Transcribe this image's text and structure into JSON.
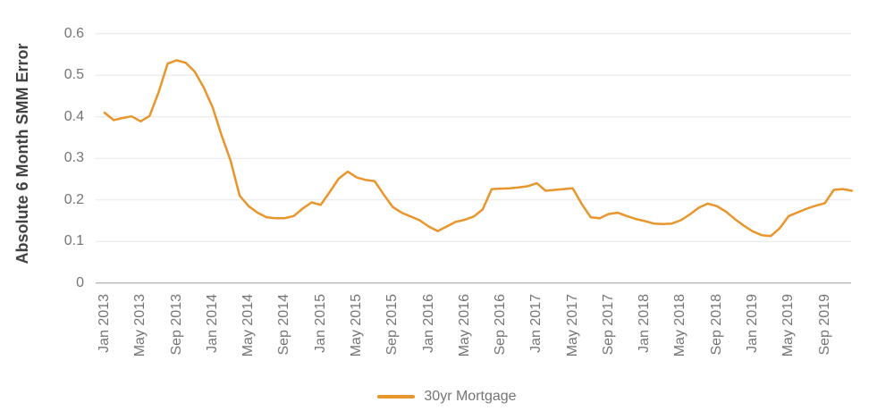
{
  "chart_data": {
    "type": "line",
    "title": "",
    "ylabel": "Absolute 6 Month SMM Error",
    "xlabel": "",
    "ylim": [
      0,
      0.6
    ],
    "ytick_values": [
      0,
      0.1,
      0.2,
      0.3,
      0.4,
      0.5,
      0.6
    ],
    "ytick_labels": [
      "0",
      "0.1",
      "0.2",
      "0.3",
      "0.4",
      "0.5",
      "0.6"
    ],
    "xtick_labels": [
      "Jan 2013",
      "May 2013",
      "Sep 2013",
      "Jan 2014",
      "May 2014",
      "Sep 2014",
      "Jan 2015",
      "May 2015",
      "Sep 2015",
      "Jan 2016",
      "May 2016",
      "Sep 2016",
      "Jan 2017",
      "May 2017",
      "Sep 2017",
      "Jan 2018",
      "May 2018",
      "Sep 2018",
      "Jan 2019",
      "May 2019",
      "Sep 2019"
    ],
    "points_per_xtick": 4,
    "grid": "horizontal",
    "legend_position": "bottom",
    "series": [
      {
        "name": "30yr Mortgage",
        "color": "#E8952C",
        "values": [
          0.41,
          0.392,
          0.397,
          0.401,
          0.389,
          0.402,
          0.459,
          0.528,
          0.536,
          0.53,
          0.509,
          0.471,
          0.423,
          0.355,
          0.294,
          0.21,
          0.185,
          0.169,
          0.158,
          0.156,
          0.156,
          0.161,
          0.179,
          0.194,
          0.188,
          0.219,
          0.251,
          0.268,
          0.254,
          0.248,
          0.245,
          0.213,
          0.183,
          0.169,
          0.16,
          0.151,
          0.136,
          0.125,
          0.136,
          0.147,
          0.152,
          0.16,
          0.177,
          0.226,
          0.227,
          0.228,
          0.23,
          0.233,
          0.24,
          0.222,
          0.224,
          0.226,
          0.228,
          0.19,
          0.158,
          0.156,
          0.166,
          0.169,
          0.161,
          0.154,
          0.149,
          0.143,
          0.142,
          0.143,
          0.151,
          0.165,
          0.181,
          0.191,
          0.185,
          0.172,
          0.154,
          0.138,
          0.124,
          0.115,
          0.113,
          0.132,
          0.161,
          0.17,
          0.179,
          0.186,
          0.192,
          0.224,
          0.226,
          0.222
        ]
      }
    ],
    "colors": {
      "gridline": "#E6E6E6",
      "zero_line": "#9E9E9E",
      "tick_text": "#757575",
      "axis_title_text": "#424242",
      "background": "#FFFFFF"
    }
  }
}
